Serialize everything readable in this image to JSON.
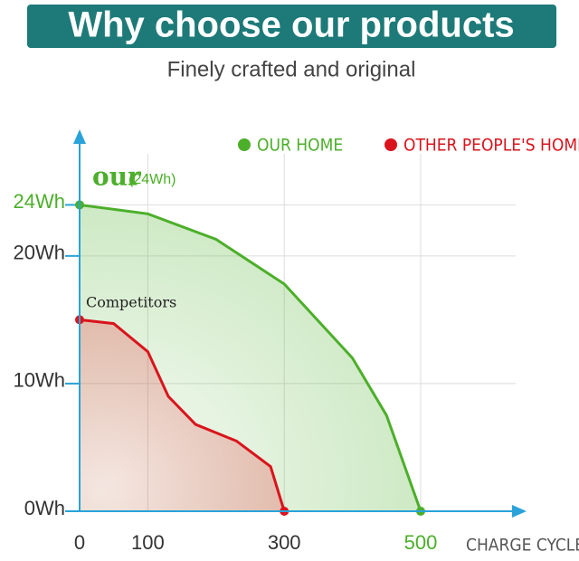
{
  "chart_data": {
    "type": "area",
    "title": "Why choose our products",
    "subtitle": "Finely crafted and original",
    "x_label": "CHARGE CYCLES",
    "annotations": [
      "our",
      "(24Wh)",
      "Competitors"
    ],
    "series": [
      {
        "name": "OUR HOME",
        "color": "#4caf2a",
        "x": [
          0,
          100,
          200,
          300,
          400,
          450,
          500
        ],
        "values": [
          24,
          23.3,
          21.3,
          17.8,
          12,
          7.5,
          0
        ]
      },
      {
        "name": "OTHER PEOPLE'S HOME",
        "color": "#d9141c",
        "x": [
          0,
          50,
          100,
          130,
          170,
          230,
          280,
          300
        ],
        "values": [
          15,
          14.7,
          12.5,
          9,
          6.8,
          5.5,
          3.5,
          0
        ]
      }
    ],
    "xlim": [
      0,
      500
    ],
    "xticks": [
      0,
      100,
      300,
      500
    ],
    "ylim": [
      0,
      28
    ],
    "yticks": [
      {
        "value": 0,
        "label": "0Wh"
      },
      {
        "value": 10,
        "label": "10Wh"
      },
      {
        "value": 20,
        "label": "20Wh"
      },
      {
        "value": 24,
        "label": "24Wh"
      }
    ],
    "grid": true,
    "legend": "top"
  }
}
